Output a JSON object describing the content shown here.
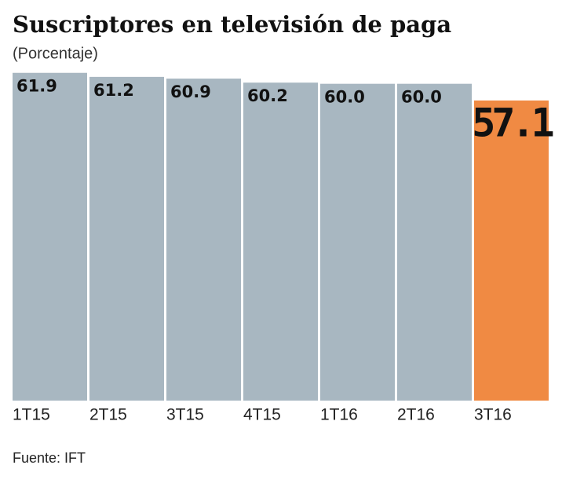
{
  "chart_data": {
    "type": "bar",
    "title": "Suscriptores en televisión de paga",
    "subtitle": "(Porcentaje)",
    "source": "Fuente: IFT",
    "categories": [
      "1T15",
      "2T15",
      "3T15",
      "4T15",
      "1T16",
      "2T16",
      "3T16"
    ],
    "values": [
      61.9,
      61.2,
      60.9,
      60.2,
      60.0,
      60.0,
      57.1
    ],
    "value_labels": [
      "61.9",
      "61.2",
      "60.9",
      "60.2",
      "60.0",
      "60.0",
      "57.1"
    ],
    "colors": [
      "#a8b7c1",
      "#a8b7c1",
      "#a8b7c1",
      "#a8b7c1",
      "#a8b7c1",
      "#a8b7c1",
      "#f08a43"
    ],
    "ylim": [
      5,
      62
    ]
  }
}
